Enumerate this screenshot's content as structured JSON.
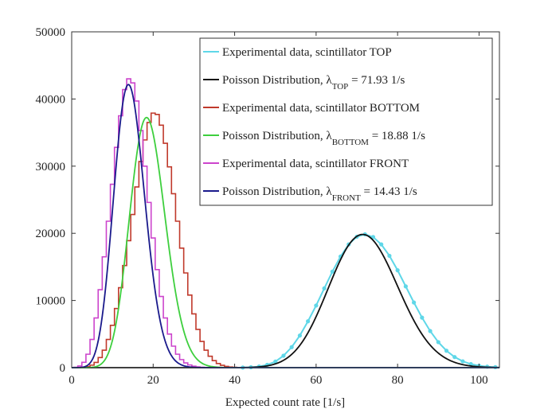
{
  "chart_data": {
    "type": "line",
    "xlabel": "Expected count rate [1/s]",
    "ylabel": "",
    "xlim": [
      0,
      105
    ],
    "ylim": [
      0,
      50000
    ],
    "x_ticks": [
      0,
      20,
      40,
      60,
      80,
      100
    ],
    "y_ticks": [
      0,
      10000,
      20000,
      30000,
      40000,
      50000
    ],
    "grid": false,
    "legend_position": "top-right",
    "series": [
      {
        "name": "Experimental data, scintillator TOP",
        "style": "points",
        "color": "#5fd7e8",
        "x": [
          42,
          44,
          46,
          48,
          50,
          52,
          54,
          56,
          58,
          60,
          62,
          64,
          66,
          68,
          70,
          72,
          74,
          76,
          78,
          80,
          82,
          84,
          86,
          88,
          90,
          92,
          94,
          96,
          98,
          100,
          102,
          104
        ],
        "values": [
          15,
          55,
          170,
          420,
          900,
          1780,
          3050,
          4780,
          6900,
          9250,
          11800,
          14300,
          16550,
          18350,
          19500,
          19850,
          19450,
          18350,
          16650,
          14500,
          12100,
          9700,
          7450,
          5450,
          3800,
          2520,
          1580,
          940,
          530,
          285,
          145,
          70
        ]
      },
      {
        "name": "Poisson Distribution, λTOP = 71.93 1/s",
        "legend_main": "Poisson Distribution, λ",
        "legend_sub": "TOP",
        "legend_tail": " = 71.93 1/s",
        "style": "line",
        "color": "#111111",
        "lambda": 71.93,
        "peak": 19800
      },
      {
        "name": "Experimental data, scintillator BOTTOM",
        "style": "stairs",
        "color": "#c0392b",
        "x": [
          3,
          4,
          5,
          6,
          7,
          8,
          9,
          10,
          11,
          12,
          13,
          14,
          15,
          16,
          17,
          18,
          19,
          20,
          21,
          22,
          23,
          24,
          25,
          26,
          27,
          28,
          29,
          30,
          31,
          32,
          33,
          34,
          35,
          36,
          37,
          38,
          39,
          40
        ],
        "values": [
          60,
          160,
          370,
          780,
          1500,
          2600,
          4200,
          6300,
          8800,
          11900,
          15200,
          18900,
          22800,
          26900,
          30700,
          33900,
          36500,
          37900,
          37700,
          36100,
          33400,
          29900,
          25900,
          21800,
          17800,
          14100,
          10800,
          8000,
          5700,
          3900,
          2600,
          1700,
          1050,
          620,
          350,
          190,
          100,
          50
        ]
      },
      {
        "name": "Poisson Distribution, λBOTTOM = 18.88 1/s",
        "legend_main": "Poisson Distribution, λ",
        "legend_sub": "BOTTOM",
        "legend_tail": " = 18.88 1/s",
        "style": "line",
        "color": "#3ecf3e",
        "lambda": 18.88,
        "peak": 37000
      },
      {
        "name": "Experimental data, scintillator FRONT",
        "style": "stairs",
        "color": "#cc44cc",
        "x": [
          1,
          2,
          3,
          4,
          5,
          6,
          7,
          8,
          9,
          10,
          11,
          12,
          13,
          14,
          15,
          16,
          17,
          18,
          19,
          20,
          21,
          22,
          23,
          24,
          25,
          26,
          27,
          28,
          29,
          30,
          31,
          32,
          33,
          34
        ],
        "values": [
          60,
          250,
          800,
          2000,
          4200,
          7400,
          11600,
          16500,
          21800,
          27300,
          32800,
          37500,
          41400,
          43000,
          42400,
          39700,
          35300,
          30000,
          24600,
          19300,
          14600,
          10600,
          7400,
          5000,
          3200,
          2000,
          1200,
          700,
          400,
          220,
          110,
          55,
          25,
          10
        ]
      },
      {
        "name": "Poisson Distribution, λFRONT = 14.43 1/s",
        "legend_main": "Poisson Distribution, λ",
        "legend_sub": "FRONT",
        "legend_tail": " = 14.43 1/s",
        "style": "line",
        "color": "#1a1a8c",
        "lambda": 14.43,
        "peak": 41800
      }
    ]
  }
}
